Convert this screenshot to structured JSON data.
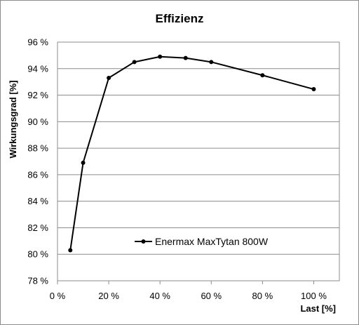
{
  "chart_data": {
    "type": "line",
    "title": "Effizienz",
    "xlabel": "Last [%]",
    "ylabel": "Wirkungsgrad [%]",
    "xlim": [
      0,
      110
    ],
    "ylim": [
      78,
      96
    ],
    "xticks": [
      "0 %",
      "20 %",
      "40 %",
      "60 %",
      "80 %",
      "100 %"
    ],
    "xtick_values": [
      0,
      20,
      40,
      60,
      80,
      100
    ],
    "yticks": [
      "78 %",
      "80 %",
      "82 %",
      "84 %",
      "86 %",
      "88 %",
      "90 %",
      "92 %",
      "94 %",
      "96 %"
    ],
    "ytick_values": [
      78,
      80,
      82,
      84,
      86,
      88,
      90,
      92,
      94,
      96
    ],
    "grid": "horizontal",
    "legend_position": "inside-bottom-center",
    "series": [
      {
        "name": "Enermax MaxTytan 800W",
        "color": "#000000",
        "x": [
          5,
          10,
          20,
          30,
          40,
          50,
          60,
          80,
          100
        ],
        "y": [
          80.3,
          86.9,
          93.3,
          94.5,
          94.9,
          94.8,
          94.5,
          93.5,
          92.45
        ]
      }
    ]
  }
}
